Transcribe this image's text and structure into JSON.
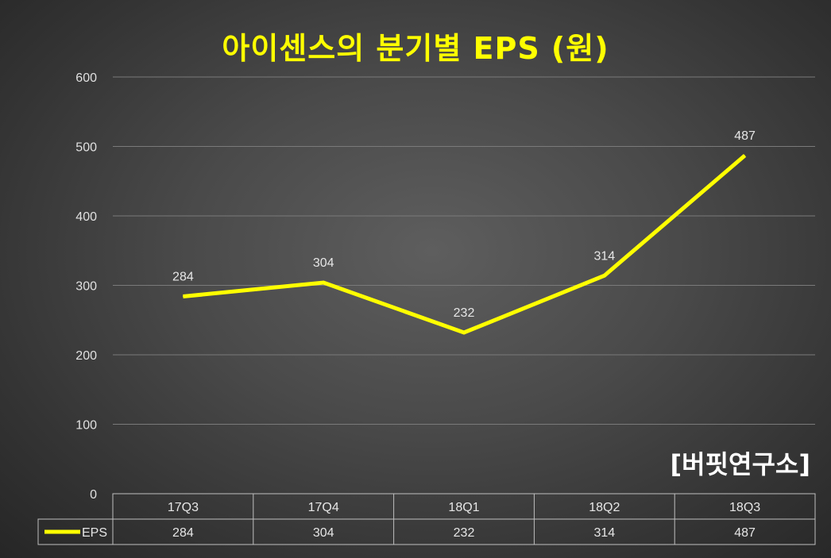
{
  "chart_data": {
    "type": "line",
    "title": "아이센스의 분기별 EPS (원)",
    "categories": [
      "17Q3",
      "17Q4",
      "18Q1",
      "18Q2",
      "18Q3"
    ],
    "series": [
      {
        "name": "EPS",
        "values": [
          284,
          304,
          232,
          314,
          487
        ],
        "color": "#ffff00"
      }
    ],
    "ylim": [
      0,
      600
    ],
    "yticks": [
      0,
      100,
      200,
      300,
      400,
      500,
      600
    ],
    "grid": true,
    "data_table": true,
    "line_color": "#ffff00",
    "grid_color": "#7a7a7a"
  },
  "watermark": "[버핏연구소]",
  "data_table": {
    "series_label": "EPS"
  }
}
